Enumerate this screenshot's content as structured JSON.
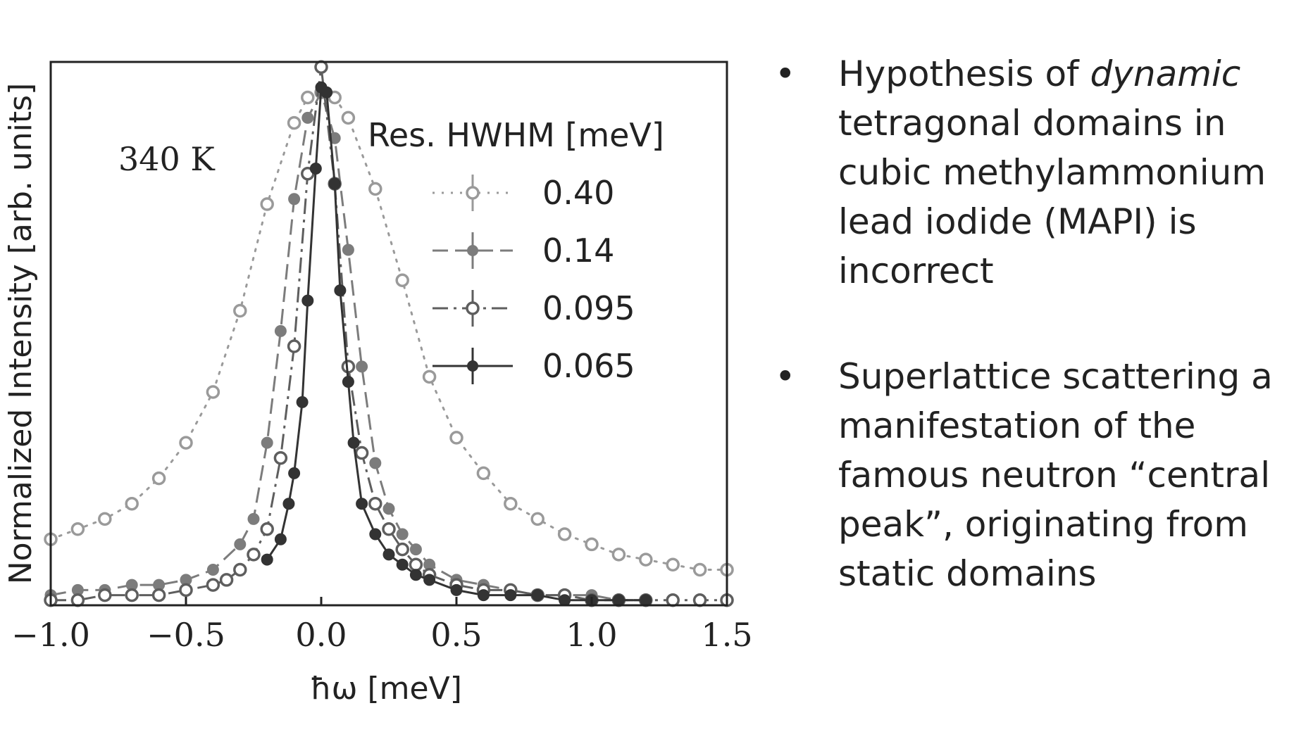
{
  "chart_data": {
    "type": "scatter",
    "annotation": "340 K",
    "xlabel": "ħω [meV]",
    "ylabel": "Normalized Intensity [arb. units]",
    "xlim": [
      -1.0,
      1.5
    ],
    "ylim": [
      0,
      1.07
    ],
    "xticks": [
      -1.0,
      -0.5,
      0.0,
      0.5,
      1.0,
      1.5
    ],
    "xtick_labels": [
      "−1.0",
      "−0.5",
      "0.0",
      "0.5",
      "1.0",
      "1.5"
    ],
    "legend_title": "Res. HWHM [meV]",
    "legend_position": "top-right",
    "series": [
      {
        "name": "0.40",
        "style": "dotted",
        "marker": "open-circle",
        "color": "#9a9a9a",
        "x": [
          -1.0,
          -0.9,
          -0.8,
          -0.7,
          -0.6,
          -0.5,
          -0.4,
          -0.3,
          -0.2,
          -0.1,
          -0.05,
          0.0,
          0.05,
          0.1,
          0.2,
          0.3,
          0.4,
          0.5,
          0.6,
          0.7,
          0.8,
          0.9,
          1.0,
          1.1,
          1.2,
          1.3,
          1.4,
          1.5
        ],
        "y": [
          0.13,
          0.15,
          0.17,
          0.2,
          0.25,
          0.32,
          0.42,
          0.58,
          0.79,
          0.95,
          1.0,
          1.01,
          1.0,
          0.96,
          0.82,
          0.64,
          0.45,
          0.33,
          0.26,
          0.2,
          0.17,
          0.14,
          0.12,
          0.1,
          0.09,
          0.08,
          0.07,
          0.07
        ]
      },
      {
        "name": "0.14",
        "style": "dashed",
        "marker": "filled-circle",
        "color": "#7c7c7c",
        "x": [
          -1.0,
          -0.9,
          -0.8,
          -0.7,
          -0.6,
          -0.5,
          -0.4,
          -0.3,
          -0.25,
          -0.2,
          -0.15,
          -0.1,
          -0.05,
          0.0,
          0.05,
          0.1,
          0.15,
          0.2,
          0.25,
          0.3,
          0.35,
          0.4,
          0.5,
          0.6,
          0.7,
          0.8,
          0.9,
          1.0,
          1.1,
          1.2
        ],
        "y": [
          0.02,
          0.03,
          0.03,
          0.04,
          0.04,
          0.05,
          0.07,
          0.12,
          0.17,
          0.32,
          0.54,
          0.8,
          0.96,
          1.01,
          0.92,
          0.7,
          0.47,
          0.28,
          0.19,
          0.14,
          0.11,
          0.08,
          0.05,
          0.04,
          0.03,
          0.02,
          0.02,
          0.02,
          0.01,
          0.01
        ]
      },
      {
        "name": "0.095",
        "style": "dashdot",
        "marker": "open-circle",
        "color": "#5e5e5e",
        "x": [
          -1.0,
          -0.9,
          -0.8,
          -0.7,
          -0.6,
          -0.5,
          -0.4,
          -0.35,
          -0.3,
          -0.25,
          -0.2,
          -0.15,
          -0.1,
          -0.05,
          0.0,
          0.05,
          0.1,
          0.15,
          0.2,
          0.25,
          0.3,
          0.35,
          0.4,
          0.5,
          0.6,
          0.7,
          0.8,
          0.9,
          1.0,
          1.1,
          1.2,
          1.3,
          1.4,
          1.5
        ],
        "y": [
          0.01,
          0.01,
          0.02,
          0.02,
          0.02,
          0.03,
          0.04,
          0.05,
          0.07,
          0.1,
          0.15,
          0.29,
          0.51,
          0.85,
          1.06,
          0.83,
          0.47,
          0.3,
          0.2,
          0.15,
          0.11,
          0.08,
          0.06,
          0.04,
          0.03,
          0.03,
          0.02,
          0.02,
          0.01,
          0.01,
          0.01,
          0.01,
          0.01,
          0.01
        ]
      },
      {
        "name": "0.065",
        "style": "solid",
        "marker": "filled-circle",
        "color": "#333333",
        "x": [
          -0.2,
          -0.15,
          -0.12,
          -0.1,
          -0.07,
          -0.05,
          -0.02,
          0.0,
          0.02,
          0.05,
          0.07,
          0.1,
          0.12,
          0.15,
          0.2,
          0.25,
          0.3,
          0.35,
          0.4,
          0.5,
          0.6,
          0.7,
          0.8,
          0.9,
          1.0,
          1.1,
          1.2
        ],
        "y": [
          0.09,
          0.13,
          0.2,
          0.26,
          0.4,
          0.6,
          0.86,
          1.02,
          1.01,
          0.83,
          0.62,
          0.44,
          0.32,
          0.2,
          0.14,
          0.1,
          0.08,
          0.06,
          0.05,
          0.03,
          0.02,
          0.02,
          0.02,
          0.01,
          0.01,
          0.01,
          0.01
        ]
      }
    ]
  },
  "bullets": [
    {
      "marker": "•",
      "before": "Hypothesis of ",
      "emph": "dynamic",
      "after": " tetragonal domains in cubic methylammonium lead iodide (MAPI) is incorrect"
    },
    {
      "marker": "•",
      "before": "Superlattice scattering a manifestation of the famous neutron “central peak”, originating from static domains",
      "emph": "",
      "after": ""
    }
  ]
}
